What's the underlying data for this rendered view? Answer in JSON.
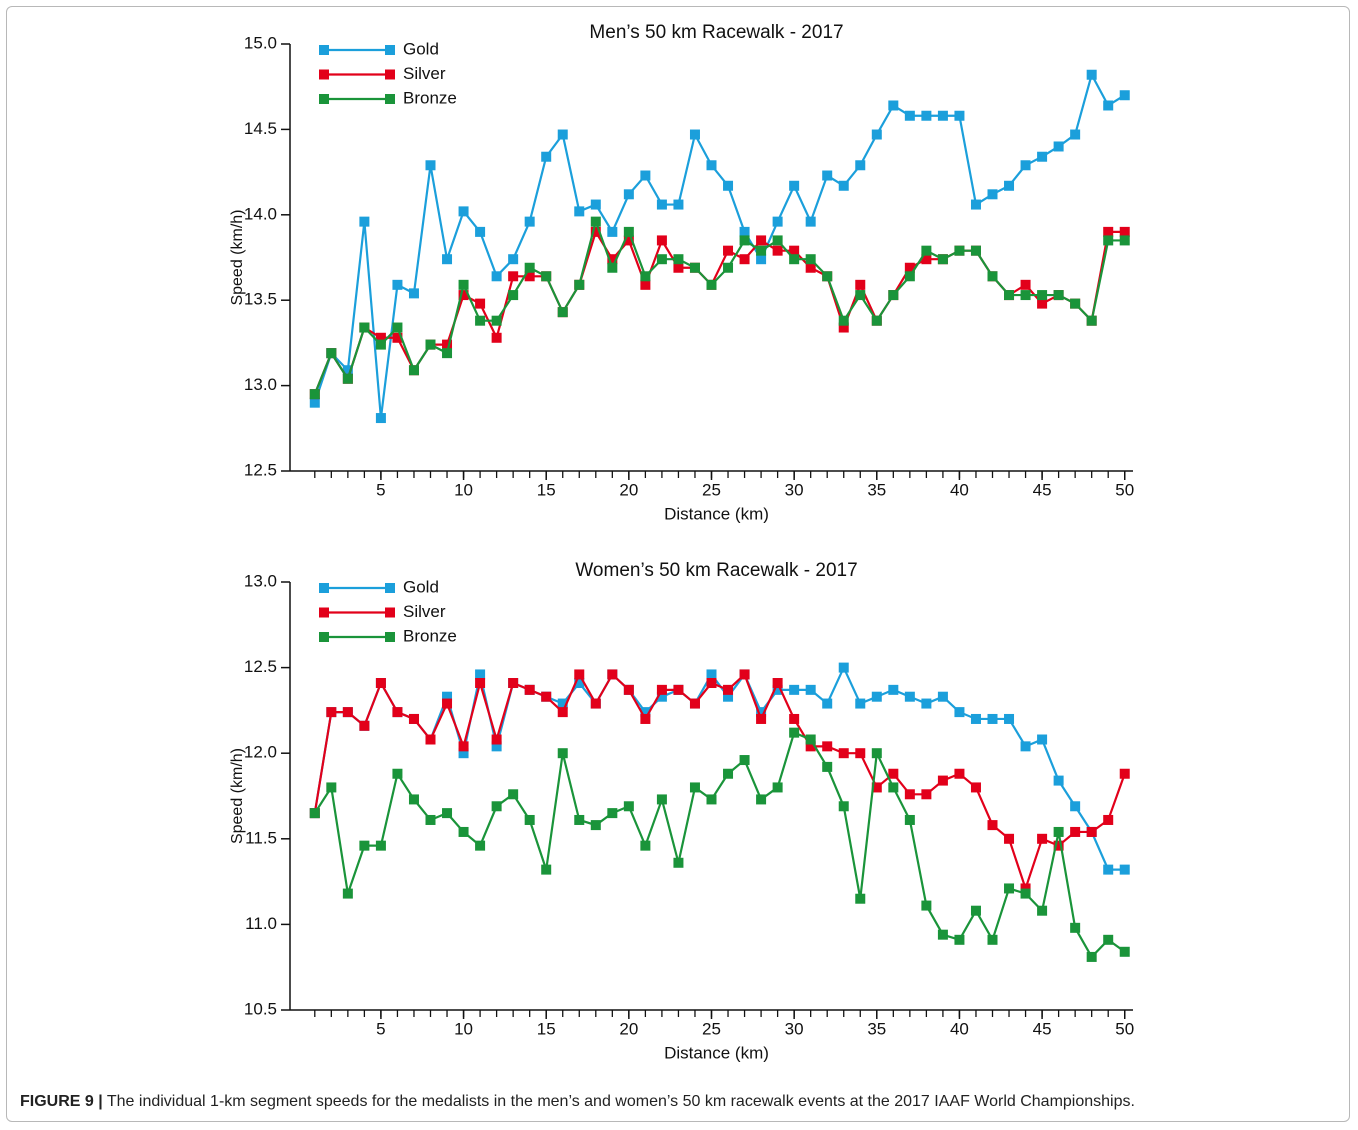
{
  "chart_data": [
    {
      "type": "line",
      "title": "Men’s 50 km Racewalk - 2017",
      "x_label": "Distance (km)",
      "y_label": "Speed (km/h)",
      "x": [
        1,
        2,
        3,
        4,
        5,
        6,
        7,
        8,
        9,
        10,
        11,
        12,
        13,
        14,
        15,
        16,
        17,
        18,
        19,
        20,
        21,
        22,
        23,
        24,
        25,
        26,
        27,
        28,
        29,
        30,
        31,
        32,
        33,
        34,
        35,
        36,
        37,
        38,
        39,
        40,
        41,
        42,
        43,
        44,
        45,
        46,
        47,
        48,
        49,
        50
      ],
      "series": [
        {
          "name": "Gold",
          "color": "#1b9fdb",
          "values": [
            12.9,
            13.19,
            13.09,
            13.96,
            12.81,
            13.59,
            13.54,
            14.29,
            13.74,
            14.02,
            13.9,
            13.64,
            13.74,
            13.96,
            14.34,
            14.47,
            14.02,
            14.06,
            13.9,
            14.12,
            14.23,
            14.06,
            14.06,
            14.47,
            14.29,
            14.17,
            13.9,
            13.74,
            13.96,
            14.17,
            13.96,
            14.23,
            14.17,
            14.29,
            14.47,
            14.64,
            14.58,
            14.58,
            14.58,
            14.58,
            14.06,
            14.12,
            14.17,
            14.29,
            14.34,
            14.4,
            14.47,
            14.82,
            14.64,
            14.7
          ]
        },
        {
          "name": "Silver",
          "color": "#e2001a",
          "values": [
            12.95,
            13.19,
            13.04,
            13.34,
            13.28,
            13.28,
            13.09,
            13.24,
            13.24,
            13.53,
            13.48,
            13.28,
            13.64,
            13.64,
            13.64,
            13.43,
            13.59,
            13.9,
            13.74,
            13.85,
            13.59,
            13.85,
            13.69,
            13.69,
            13.59,
            13.79,
            13.74,
            13.85,
            13.79,
            13.79,
            13.69,
            13.64,
            13.34,
            13.59,
            13.38,
            13.53,
            13.69,
            13.74,
            13.74,
            13.79,
            13.79,
            13.64,
            13.53,
            13.59,
            13.48,
            13.53,
            13.48,
            13.38,
            13.9,
            13.9
          ]
        },
        {
          "name": "Bronze",
          "color": "#1a943a",
          "values": [
            12.95,
            13.19,
            13.04,
            13.34,
            13.24,
            13.34,
            13.09,
            13.24,
            13.19,
            13.59,
            13.38,
            13.38,
            13.53,
            13.69,
            13.64,
            13.43,
            13.59,
            13.96,
            13.69,
            13.9,
            13.64,
            13.74,
            13.74,
            13.69,
            13.59,
            13.69,
            13.85,
            13.79,
            13.85,
            13.74,
            13.74,
            13.64,
            13.38,
            13.53,
            13.38,
            13.53,
            13.64,
            13.79,
            13.74,
            13.79,
            13.79,
            13.64,
            13.53,
            13.53,
            13.53,
            13.53,
            13.48,
            13.38,
            13.85,
            13.85
          ]
        }
      ],
      "xlim": [
        -0.5,
        50.5
      ],
      "xticks": [
        5,
        10,
        15,
        20,
        25,
        30,
        35,
        40,
        45,
        50
      ],
      "ylim": [
        12.5,
        15.0
      ],
      "yticks": [
        12.5,
        {
          "value": 13,
          "label": "13.0"
        },
        13.5,
        {
          "value": 14,
          "label": "14.0"
        },
        14.5,
        {
          "value": 15,
          "label": "15.0"
        }
      ],
      "legend": "upper left",
      "grid": false
    },
    {
      "type": "line",
      "title": "Women’s 50 km Racewalk - 2017",
      "x_label": "Distance (km)",
      "y_label": "Speed (km/h)",
      "x": [
        1,
        2,
        3,
        4,
        5,
        6,
        7,
        8,
        9,
        10,
        11,
        12,
        13,
        14,
        15,
        16,
        17,
        18,
        19,
        20,
        21,
        22,
        23,
        24,
        25,
        26,
        27,
        28,
        29,
        30,
        31,
        32,
        33,
        34,
        35,
        36,
        37,
        38,
        39,
        40,
        41,
        42,
        43,
        44,
        45,
        46,
        47,
        48,
        49,
        50
      ],
      "series": [
        {
          "name": "Gold",
          "color": "#1b9fdb",
          "values": [
            11.65,
            12.24,
            12.24,
            12.16,
            12.41,
            12.24,
            12.2,
            12.08,
            12.33,
            12.0,
            12.46,
            12.04,
            12.41,
            12.37,
            12.33,
            12.29,
            12.41,
            12.29,
            12.46,
            12.37,
            12.24,
            12.33,
            12.37,
            12.29,
            12.46,
            12.33,
            12.46,
            12.24,
            12.37,
            12.37,
            12.37,
            12.29,
            12.5,
            12.29,
            12.33,
            12.37,
            12.33,
            12.29,
            12.33,
            12.24,
            12.2,
            12.2,
            12.2,
            12.04,
            12.08,
            11.84,
            11.69,
            11.54,
            11.32,
            11.32
          ]
        },
        {
          "name": "Silver",
          "color": "#e2001a",
          "values": [
            11.65,
            12.24,
            12.24,
            12.16,
            12.41,
            12.24,
            12.2,
            12.08,
            12.29,
            12.04,
            12.41,
            12.08,
            12.41,
            12.37,
            12.33,
            12.24,
            12.46,
            12.29,
            12.46,
            12.37,
            12.2,
            12.37,
            12.37,
            12.29,
            12.41,
            12.37,
            12.46,
            12.2,
            12.41,
            12.2,
            12.04,
            12.04,
            12.0,
            12.0,
            11.8,
            11.88,
            11.76,
            11.76,
            11.84,
            11.88,
            11.8,
            11.58,
            11.5,
            11.21,
            11.5,
            11.46,
            11.54,
            11.54,
            11.61,
            11.88
          ]
        },
        {
          "name": "Bronze",
          "color": "#1a943a",
          "values": [
            11.65,
            11.8,
            11.18,
            11.46,
            11.46,
            11.88,
            11.73,
            11.61,
            11.65,
            11.54,
            11.46,
            11.69,
            11.76,
            11.61,
            11.32,
            12.0,
            11.61,
            11.58,
            11.65,
            11.69,
            11.46,
            11.73,
            11.36,
            11.8,
            11.73,
            11.88,
            11.96,
            11.73,
            11.8,
            12.12,
            12.08,
            11.92,
            11.69,
            11.15,
            12.0,
            11.8,
            11.61,
            11.11,
            10.94,
            10.91,
            11.08,
            10.91,
            11.21,
            11.18,
            11.08,
            11.54,
            10.98,
            10.81,
            10.91,
            10.84
          ]
        }
      ],
      "xlim": [
        -0.5,
        50.5
      ],
      "xticks": [
        5,
        10,
        15,
        20,
        25,
        30,
        35,
        40,
        45,
        50
      ],
      "ylim": [
        10.5,
        13.0
      ],
      "yticks": [
        10.5,
        {
          "value": 11,
          "label": "11.0"
        },
        11.5,
        {
          "value": 12,
          "label": "12.0"
        },
        12.5,
        {
          "value": 13,
          "label": "13.0"
        }
      ],
      "legend": "upper left",
      "grid": false
    }
  ],
  "caption": {
    "label": "FIGURE 9 |",
    "text": "The individual 1-km segment speeds for the medalists in the men’s and women’s 50 km racewalk events at the 2017 IAAF World Championships."
  }
}
